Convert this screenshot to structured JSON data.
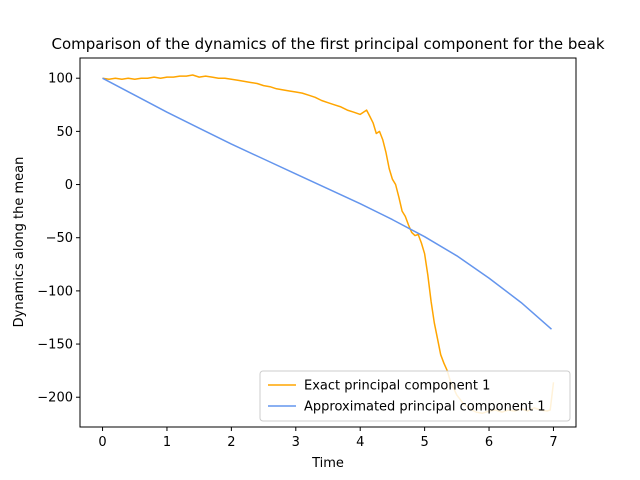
{
  "chart_data": {
    "type": "line",
    "title": "Comparison of the dynamics of the first principal component for the beak",
    "xlabel": "Time",
    "ylabel": "Dynamics along the mean",
    "xlim": [
      -0.35,
      7.35
    ],
    "ylim": [
      -228,
      119
    ],
    "xticks": [
      0,
      1,
      2,
      3,
      4,
      5,
      6,
      7
    ],
    "xtick_labels": [
      "0",
      "1",
      "2",
      "3",
      "4",
      "5",
      "6",
      "7"
    ],
    "yticks": [
      100,
      50,
      0,
      -50,
      -100,
      -150,
      -200
    ],
    "ytick_labels": [
      "100",
      "50",
      "0",
      "−50",
      "−100",
      "−150",
      "−200"
    ],
    "legend_position": "lower right",
    "grid": false,
    "series": [
      {
        "name": "Exact principal component 1",
        "color": "#ffa500",
        "x": [
          0,
          0.1,
          0.2,
          0.3,
          0.4,
          0.5,
          0.6,
          0.7,
          0.8,
          0.9,
          1.0,
          1.1,
          1.2,
          1.3,
          1.4,
          1.5,
          1.6,
          1.7,
          1.8,
          1.9,
          2.0,
          2.1,
          2.2,
          2.3,
          2.4,
          2.5,
          2.6,
          2.7,
          2.8,
          2.9,
          3.0,
          3.1,
          3.2,
          3.3,
          3.4,
          3.5,
          3.6,
          3.7,
          3.8,
          3.9,
          4.0,
          4.05,
          4.1,
          4.15,
          4.2,
          4.25,
          4.3,
          4.35,
          4.4,
          4.45,
          4.5,
          4.55,
          4.6,
          4.65,
          4.7,
          4.75,
          4.8,
          4.85,
          4.9,
          4.95,
          5.0,
          5.05,
          5.1,
          5.15,
          5.2,
          5.25,
          5.3,
          5.35,
          5.4,
          5.5,
          5.6,
          5.7,
          5.8,
          5.9,
          6.0,
          6.1,
          6.2,
          6.3,
          6.4,
          6.5,
          6.6,
          6.7,
          6.8,
          6.9,
          6.95,
          7.0
        ],
        "y": [
          100,
          99,
          100,
          99,
          100,
          99,
          100,
          100,
          101,
          100,
          101,
          101,
          102,
          102,
          103,
          101,
          102,
          101,
          100,
          100,
          99,
          98,
          97,
          96,
          95,
          93,
          92,
          90,
          89,
          88,
          87,
          86,
          84,
          82,
          79,
          77,
          75,
          73,
          70,
          68,
          66,
          68,
          70,
          64,
          58,
          48,
          50,
          42,
          30,
          15,
          5,
          0,
          -12,
          -25,
          -30,
          -38,
          -45,
          -48,
          -47,
          -55,
          -65,
          -85,
          -110,
          -130,
          -145,
          -160,
          -168,
          -175,
          -185,
          -198,
          -206,
          -211,
          -214,
          -215,
          -213,
          -212,
          -214,
          -212,
          -213,
          -211,
          -213,
          -210,
          -212,
          -213,
          -212,
          -186
        ]
      },
      {
        "name": "Approximated principal component 1",
        "color": "#6495ed",
        "x": [
          0,
          0.5,
          1.0,
          1.5,
          2.0,
          2.5,
          3.0,
          3.5,
          4.0,
          4.5,
          5.0,
          5.5,
          6.0,
          6.5,
          6.97
        ],
        "y": [
          100,
          84,
          68,
          53,
          38,
          24,
          10,
          -4,
          -18,
          -33,
          -49,
          -67,
          -88,
          -111,
          -136
        ]
      }
    ]
  }
}
